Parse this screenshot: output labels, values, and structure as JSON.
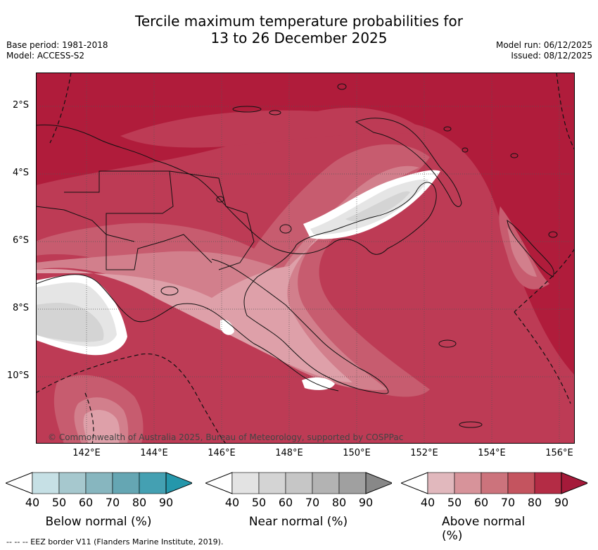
{
  "header": {
    "title_line1": "Tercile maximum temperature probabilities for",
    "title_line2": "13 to 26 December 2025",
    "base_period": "Base period: 1981-2018",
    "model": "Model: ACCESS-S2",
    "model_run": "Model run: 06/12/2025",
    "issued": "Issued: 08/12/2025"
  },
  "map": {
    "lat_labels": [
      "2°S",
      "4°S",
      "6°S",
      "8°S",
      "10°S"
    ],
    "lon_labels": [
      "142°E",
      "144°E",
      "146°E",
      "148°E",
      "150°E",
      "152°E",
      "154°E",
      "156°E"
    ],
    "copyright": "© Commonwealth of Australia 2025, Bureau of Meteorology, supported by COSPPac",
    "colors": {
      "above_90": "#b01c3b",
      "above_80": "#bd3b55",
      "above_70": "#c75c6f",
      "above_60": "#d27f8c",
      "above_50": "#dea0a9",
      "near_40": "#e5e5e5",
      "near_50": "#d4d4d4",
      "white": "#ffffff"
    }
  },
  "legends": [
    {
      "title": "Below normal (%)",
      "ticks": [
        "40",
        "50",
        "60",
        "70",
        "80",
        "90"
      ],
      "colors": [
        "#c6e0e5",
        "#a6c8ce",
        "#87b6bf",
        "#65a6b3",
        "#44a0b2",
        "#2597ab"
      ]
    },
    {
      "title": "Near normal (%)",
      "ticks": [
        "40",
        "50",
        "60",
        "70",
        "80",
        "90"
      ],
      "colors": [
        "#e3e3e3",
        "#d4d4d4",
        "#c6c6c6",
        "#b3b3b3",
        "#a0a0a0",
        "#888888"
      ]
    },
    {
      "title": "Above normal (%)",
      "ticks": [
        "40",
        "50",
        "60",
        "70",
        "80",
        "90"
      ],
      "colors": [
        "#e1b8bd",
        "#d7939a",
        "#cc737c",
        "#c4545f",
        "#b42c45",
        "#a51a3a"
      ]
    }
  ],
  "footer": "--  --  -- EEZ border V11 (Flanders Marine Institute, 2019)."
}
